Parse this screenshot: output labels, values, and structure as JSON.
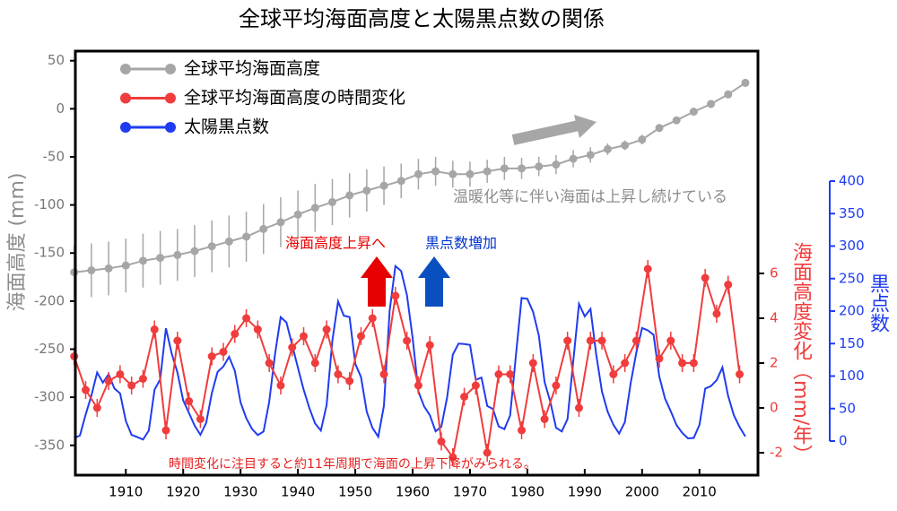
{
  "chart_data": {
    "type": "line",
    "title": "全球平均海面高度と太陽黒点数の関係",
    "legend": "upper left",
    "xlim": [
      1901.2,
      2020.2
    ],
    "xticks": [
      1910,
      1920,
      1930,
      1940,
      1950,
      1960,
      1970,
      1980,
      1990,
      2000,
      2010
    ],
    "ylim": [
      -381,
      60
    ],
    "yticks": [
      50,
      0,
      -50,
      -100,
      -150,
      -200,
      -250,
      -300,
      -350
    ],
    "ylabel": "海面高度 (mm)",
    "y2lim": [
      -3,
      15.92
    ],
    "y2ticks": [
      -2,
      0,
      2,
      4,
      6
    ],
    "y2label": "海面高度変化（mm/年）",
    "y3lim": [
      0,
      400
    ],
    "y3ticks": [
      0,
      50,
      100,
      150,
      200,
      250,
      300,
      350,
      400
    ],
    "y3label": "黒点数",
    "series": [
      {
        "name": "全球平均海面高度",
        "color": "#a6a6a6",
        "axis": "y",
        "x": [
          1901,
          1904,
          1907,
          1910,
          1913,
          1916,
          1919,
          1922,
          1925,
          1928,
          1931,
          1934,
          1937,
          1940,
          1943,
          1946,
          1949,
          1952,
          1955,
          1958,
          1961,
          1964,
          1967,
          1970,
          1973,
          1976,
          1979,
          1982,
          1985,
          1988,
          1991,
          1994,
          1997,
          2000,
          2003,
          2006,
          2009,
          2012,
          2015,
          2018
        ],
        "values": [
          -170,
          -168,
          -166,
          -163,
          -158,
          -155,
          -152,
          -148,
          -143,
          -138,
          -133,
          -125,
          -118,
          -110,
          -103,
          -97,
          -90,
          -85,
          -80,
          -75,
          -68,
          -65,
          -68,
          -68,
          -65,
          -62,
          -62,
          -60,
          -58,
          -52,
          -48,
          -42,
          -38,
          -32,
          -20,
          -12,
          -3,
          5,
          15,
          27
        ],
        "errors": [
          28,
          28,
          28,
          28,
          28,
          28,
          27,
          27,
          27,
          27,
          26,
          26,
          26,
          25,
          25,
          24,
          23,
          22,
          20,
          18,
          16,
          15,
          14,
          13,
          12,
          12,
          11,
          10,
          10,
          9,
          8,
          6,
          5,
          5,
          4,
          4,
          4,
          4,
          4,
          4
        ]
      },
      {
        "name": "全球平均海面高度の時間変化",
        "color": "#f03c3c",
        "axis": "y2",
        "x": [
          1901,
          1903,
          1905,
          1907,
          1909,
          1911,
          1913,
          1915,
          1917,
          1919,
          1921,
          1923,
          1925,
          1927,
          1929,
          1931,
          1933,
          1935,
          1937,
          1939,
          1941,
          1943,
          1945,
          1947,
          1949,
          1951,
          1953,
          1955,
          1957,
          1959,
          1961,
          1963,
          1965,
          1967,
          1969,
          1971,
          1973,
          1975,
          1977,
          1979,
          1981,
          1983,
          1985,
          1987,
          1989,
          1991,
          1993,
          1995,
          1997,
          1999,
          2001,
          2003,
          2005,
          2007,
          2009,
          2011,
          2013,
          2015,
          2017
        ],
        "values": [
          2.3,
          0.8,
          0,
          1.2,
          1.5,
          1,
          1.3,
          3.5,
          -1,
          3,
          0.3,
          -0.5,
          2.3,
          2.5,
          3.3,
          4,
          3.5,
          2,
          1,
          2.7,
          3.2,
          2,
          3.5,
          1.5,
          1.2,
          3.2,
          4,
          1.5,
          5,
          3,
          1,
          2.8,
          -1.5,
          -2.2,
          0.5,
          1,
          -2,
          1.5,
          1.5,
          -1,
          2,
          -0.5,
          1,
          3,
          0,
          3,
          3,
          1.5,
          2,
          3,
          6.2,
          2.2,
          3,
          2,
          2,
          5.8,
          4.2,
          5.5,
          1.5
        ],
        "error": 0.4
      },
      {
        "name": "太陽黒点数",
        "color": "#1f3cf0",
        "axis": "y3",
        "x": [
          1901,
          1902,
          1903,
          1904,
          1905,
          1906,
          1907,
          1908,
          1909,
          1910,
          1911,
          1912,
          1913,
          1914,
          1915,
          1916,
          1917,
          1918,
          1919,
          1920,
          1921,
          1922,
          1923,
          1924,
          1925,
          1926,
          1927,
          1928,
          1929,
          1930,
          1931,
          1932,
          1933,
          1934,
          1935,
          1936,
          1937,
          1938,
          1939,
          1940,
          1941,
          1942,
          1943,
          1944,
          1945,
          1946,
          1947,
          1948,
          1949,
          1950,
          1951,
          1952,
          1953,
          1954,
          1955,
          1956,
          1957,
          1958,
          1959,
          1960,
          1961,
          1962,
          1963,
          1964,
          1965,
          1966,
          1967,
          1968,
          1969,
          1970,
          1971,
          1972,
          1973,
          1974,
          1975,
          1976,
          1977,
          1978,
          1979,
          1980,
          1981,
          1982,
          1983,
          1984,
          1985,
          1986,
          1987,
          1988,
          1989,
          1990,
          1991,
          1992,
          1993,
          1994,
          1995,
          1996,
          1997,
          1998,
          1999,
          2000,
          2001,
          2002,
          2003,
          2004,
          2005,
          2006,
          2007,
          2008,
          2009,
          2010,
          2011,
          2012,
          2013,
          2014,
          2015,
          2016,
          2017,
          2018
        ],
        "values": [
          4.6,
          8.5,
          40.8,
          70.1,
          105.5,
          90.1,
          102.8,
          80.9,
          73.2,
          30.9,
          9.5,
          6,
          2.4,
          16.1,
          79,
          95,
          173.6,
          134.6,
          105.7,
          62.7,
          43.5,
          23.7,
          9.7,
          27.9,
          74,
          106.5,
          114.7,
          129.7,
          108.2,
          59.4,
          35.1,
          18.6,
          9.2,
          14.6,
          60.2,
          132.8,
          190.6,
          182.6,
          148,
          113,
          79.2,
          50.8,
          27.1,
          16.1,
          55.3,
          154.3,
          214.7,
          193,
          190.7,
          118.9,
          98.3,
          45,
          20.1,
          6.6,
          54.2,
          200.7,
          269.3,
          261.7,
          225.1,
          159,
          76.4,
          53.4,
          39.9,
          15,
          22,
          66.8,
          132.9,
          150,
          149.4,
          148,
          94.4,
          97.6,
          54.1,
          49.2,
          22.5,
          18.4,
          39.3,
          131,
          220.1,
          218.9,
          198.9,
          162.4,
          91,
          60.5,
          20.6,
          14.8,
          33.9,
          123,
          211.1,
          191.8,
          203.3,
          133,
          76.1,
          44.9,
          25.1,
          11.6,
          28.9,
          88.3,
          136.3,
          173.9,
          170.4,
          163.6,
          99.3,
          65.3,
          45.8,
          24.7,
          12.6,
          4.2,
          4.8,
          24.9,
          80.8,
          84.5,
          94,
          113.3,
          69.8,
          39.8,
          21.7,
          7
        ]
      }
    ],
    "annotations": [
      {
        "text": "温暖化等に伴い海面は上昇し続けている",
        "color": "#8c8c8c"
      },
      {
        "text": "海面高度上昇へ",
        "color": "#e60000"
      },
      {
        "text": "黒点数増加",
        "color": "#0033cc"
      },
      {
        "text": "時間変化に注目すると約11年周期で海面の上昇下降がみられる。",
        "color": "#e62020"
      }
    ]
  }
}
